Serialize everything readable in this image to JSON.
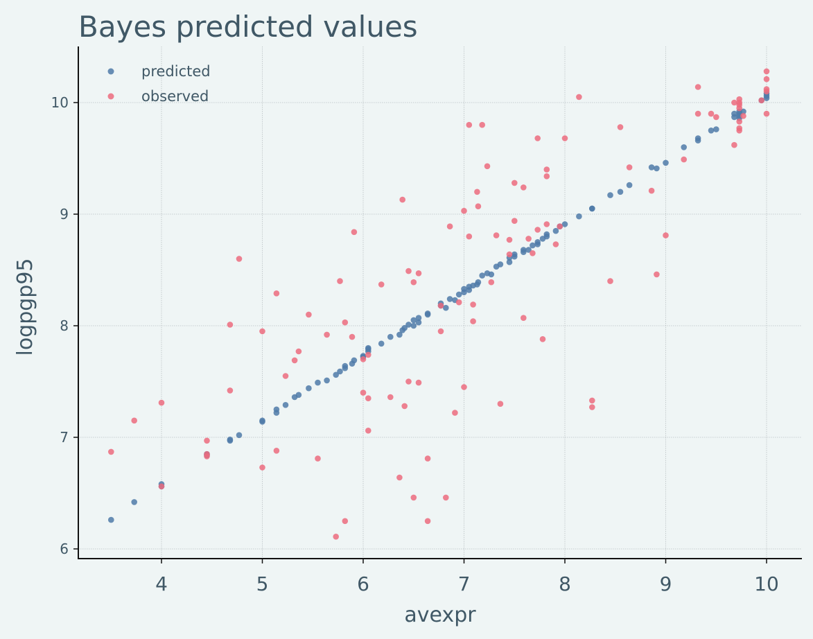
{
  "chart_data": {
    "type": "scatter",
    "title": "Bayes predicted values",
    "xlabel": "avexpr",
    "ylabel": "logpgp95",
    "xlim": [
      3.15,
      10.35
    ],
    "ylim": [
      5.9,
      10.5
    ],
    "xticks": [
      4,
      5,
      6,
      7,
      8,
      9,
      10
    ],
    "yticks": [
      6,
      7,
      8,
      9,
      10
    ],
    "grid": true,
    "legend_position": "top-left",
    "series": [
      {
        "name": "predicted",
        "color": "#4f7aa8",
        "points": [
          [
            3.5,
            6.26
          ],
          [
            3.73,
            6.42
          ],
          [
            4.0,
            6.56
          ],
          [
            4.0,
            6.58
          ],
          [
            4.45,
            6.84
          ],
          [
            4.45,
            6.85
          ],
          [
            4.68,
            6.97
          ],
          [
            4.68,
            6.98
          ],
          [
            4.77,
            7.02
          ],
          [
            5.0,
            7.14
          ],
          [
            5.0,
            7.15
          ],
          [
            5.14,
            7.22
          ],
          [
            5.14,
            7.25
          ],
          [
            5.23,
            7.29
          ],
          [
            5.32,
            7.36
          ],
          [
            5.36,
            7.38
          ],
          [
            5.46,
            7.44
          ],
          [
            5.55,
            7.49
          ],
          [
            5.64,
            7.51
          ],
          [
            5.73,
            7.56
          ],
          [
            5.77,
            7.59
          ],
          [
            5.82,
            7.62
          ],
          [
            5.82,
            7.64
          ],
          [
            5.89,
            7.66
          ],
          [
            5.91,
            7.69
          ],
          [
            6.0,
            7.72
          ],
          [
            6.0,
            7.73
          ],
          [
            6.05,
            7.77
          ],
          [
            6.05,
            7.79
          ],
          [
            6.05,
            7.8
          ],
          [
            6.18,
            7.84
          ],
          [
            6.27,
            7.9
          ],
          [
            6.36,
            7.92
          ],
          [
            6.39,
            7.96
          ],
          [
            6.41,
            7.98
          ],
          [
            6.45,
            8.01
          ],
          [
            6.5,
            8.0
          ],
          [
            6.5,
            8.05
          ],
          [
            6.55,
            8.03
          ],
          [
            6.55,
            8.07
          ],
          [
            6.64,
            8.1
          ],
          [
            6.64,
            8.11
          ],
          [
            6.77,
            8.18
          ],
          [
            6.77,
            8.2
          ],
          [
            6.82,
            8.16
          ],
          [
            6.86,
            8.24
          ],
          [
            6.91,
            8.23
          ],
          [
            6.95,
            8.28
          ],
          [
            7.0,
            8.3
          ],
          [
            7.0,
            8.33
          ],
          [
            7.05,
            8.32
          ],
          [
            7.05,
            8.35
          ],
          [
            7.09,
            8.36
          ],
          [
            7.13,
            8.37
          ],
          [
            7.14,
            8.39
          ],
          [
            7.18,
            8.45
          ],
          [
            7.23,
            8.47
          ],
          [
            7.27,
            8.46
          ],
          [
            7.32,
            8.53
          ],
          [
            7.36,
            8.55
          ],
          [
            7.45,
            8.57
          ],
          [
            7.45,
            8.61
          ],
          [
            7.5,
            8.62
          ],
          [
            7.5,
            8.64
          ],
          [
            7.59,
            8.66
          ],
          [
            7.59,
            8.68
          ],
          [
            7.64,
            8.68
          ],
          [
            7.68,
            8.72
          ],
          [
            7.73,
            8.73
          ],
          [
            7.73,
            8.75
          ],
          [
            7.78,
            8.78
          ],
          [
            7.82,
            8.8
          ],
          [
            7.82,
            8.82
          ],
          [
            7.91,
            8.85
          ],
          [
            7.95,
            8.89
          ],
          [
            8.0,
            8.91
          ],
          [
            8.14,
            8.98
          ],
          [
            8.27,
            9.05
          ],
          [
            8.27,
            9.05
          ],
          [
            8.45,
            9.17
          ],
          [
            8.55,
            9.2
          ],
          [
            8.64,
            9.26
          ],
          [
            8.86,
            9.42
          ],
          [
            8.91,
            9.41
          ],
          [
            9.0,
            9.46
          ],
          [
            9.18,
            9.6
          ],
          [
            9.32,
            9.66
          ],
          [
            9.32,
            9.68
          ],
          [
            9.45,
            9.75
          ],
          [
            9.5,
            9.76
          ],
          [
            9.68,
            9.87
          ],
          [
            9.68,
            9.9
          ],
          [
            9.73,
            9.86
          ],
          [
            9.73,
            9.88
          ],
          [
            9.73,
            9.9
          ],
          [
            9.73,
            9.92
          ],
          [
            9.77,
            9.92
          ],
          [
            9.95,
            10.02
          ],
          [
            10.0,
            10.04
          ],
          [
            10.0,
            10.06
          ],
          [
            10.0,
            10.08
          ]
        ]
      },
      {
        "name": "observed",
        "color": "#ec6b7e",
        "points": [
          [
            3.5,
            6.87
          ],
          [
            3.73,
            7.15
          ],
          [
            4.0,
            7.31
          ],
          [
            4.0,
            6.56
          ],
          [
            4.45,
            6.97
          ],
          [
            4.45,
            6.85
          ],
          [
            4.45,
            6.83
          ],
          [
            4.68,
            8.01
          ],
          [
            4.68,
            7.42
          ],
          [
            4.77,
            8.6
          ],
          [
            5.0,
            7.95
          ],
          [
            5.0,
            6.73
          ],
          [
            5.14,
            8.29
          ],
          [
            5.14,
            6.88
          ],
          [
            5.23,
            7.55
          ],
          [
            5.32,
            7.69
          ],
          [
            5.36,
            7.77
          ],
          [
            5.46,
            8.1
          ],
          [
            5.55,
            6.81
          ],
          [
            5.64,
            7.92
          ],
          [
            5.73,
            6.11
          ],
          [
            5.77,
            8.4
          ],
          [
            5.82,
            8.03
          ],
          [
            5.82,
            6.25
          ],
          [
            5.89,
            7.9
          ],
          [
            5.91,
            8.84
          ],
          [
            6.0,
            7.4
          ],
          [
            6.0,
            7.7
          ],
          [
            6.05,
            7.35
          ],
          [
            6.05,
            7.74
          ],
          [
            6.05,
            7.06
          ],
          [
            6.18,
            8.37
          ],
          [
            6.27,
            7.36
          ],
          [
            6.36,
            6.64
          ],
          [
            6.39,
            9.13
          ],
          [
            6.41,
            7.28
          ],
          [
            6.45,
            7.5
          ],
          [
            6.45,
            8.49
          ],
          [
            6.5,
            8.39
          ],
          [
            6.5,
            6.46
          ],
          [
            6.55,
            8.47
          ],
          [
            6.55,
            7.49
          ],
          [
            6.64,
            6.81
          ],
          [
            6.64,
            6.25
          ],
          [
            6.77,
            7.95
          ],
          [
            6.77,
            8.18
          ],
          [
            6.82,
            6.46
          ],
          [
            6.86,
            8.89
          ],
          [
            6.91,
            7.22
          ],
          [
            6.95,
            8.21
          ],
          [
            7.0,
            7.45
          ],
          [
            7.0,
            9.03
          ],
          [
            7.05,
            8.8
          ],
          [
            7.05,
            9.8
          ],
          [
            7.09,
            8.19
          ],
          [
            7.09,
            8.04
          ],
          [
            7.13,
            9.2
          ],
          [
            7.14,
            9.07
          ],
          [
            7.18,
            9.8
          ],
          [
            7.23,
            9.43
          ],
          [
            7.27,
            8.39
          ],
          [
            7.32,
            8.81
          ],
          [
            7.36,
            7.3
          ],
          [
            7.45,
            8.77
          ],
          [
            7.45,
            8.64
          ],
          [
            7.5,
            9.28
          ],
          [
            7.5,
            8.94
          ],
          [
            7.59,
            9.24
          ],
          [
            7.59,
            8.07
          ],
          [
            7.64,
            8.78
          ],
          [
            7.68,
            8.65
          ],
          [
            7.73,
            9.68
          ],
          [
            7.73,
            8.86
          ],
          [
            7.78,
            7.88
          ],
          [
            7.82,
            9.4
          ],
          [
            7.82,
            9.34
          ],
          [
            7.82,
            8.91
          ],
          [
            7.91,
            8.73
          ],
          [
            7.95,
            8.89
          ],
          [
            8.0,
            9.68
          ],
          [
            8.14,
            10.05
          ],
          [
            8.27,
            7.33
          ],
          [
            8.27,
            7.27
          ],
          [
            8.45,
            8.4
          ],
          [
            8.55,
            9.78
          ],
          [
            8.64,
            9.42
          ],
          [
            8.86,
            9.21
          ],
          [
            8.91,
            8.46
          ],
          [
            9.0,
            8.81
          ],
          [
            9.18,
            9.49
          ],
          [
            9.32,
            9.9
          ],
          [
            9.32,
            10.14
          ],
          [
            9.45,
            9.9
          ],
          [
            9.5,
            9.87
          ],
          [
            9.68,
            10.0
          ],
          [
            9.68,
            9.62
          ],
          [
            9.73,
            10.03
          ],
          [
            9.73,
            10.0
          ],
          [
            9.73,
            9.98
          ],
          [
            9.73,
            9.95
          ],
          [
            9.73,
            9.83
          ],
          [
            9.73,
            9.77
          ],
          [
            9.73,
            9.75
          ],
          [
            9.77,
            9.88
          ],
          [
            9.95,
            10.02
          ],
          [
            10.0,
            10.28
          ],
          [
            10.0,
            10.21
          ],
          [
            10.0,
            10.12
          ],
          [
            10.0,
            10.1
          ],
          [
            10.0,
            9.9
          ]
        ]
      }
    ]
  }
}
